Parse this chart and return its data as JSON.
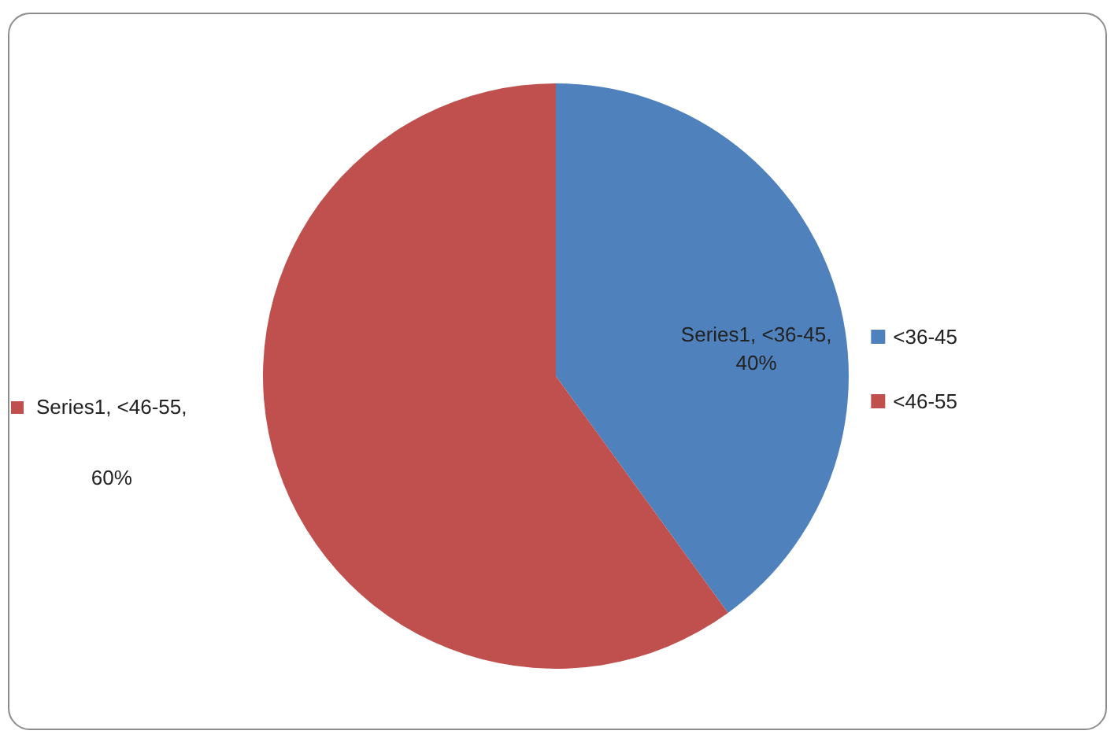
{
  "chart_data": {
    "type": "pie",
    "categories": [
      "<36-45",
      "<46-55"
    ],
    "values": [
      40,
      60
    ],
    "colors": [
      "#4f81bd",
      "#c0504d"
    ],
    "value_labels": [
      "Series1, <36-45, 40%",
      "Series1, <46-55, 60%"
    ],
    "legend": "right"
  }
}
